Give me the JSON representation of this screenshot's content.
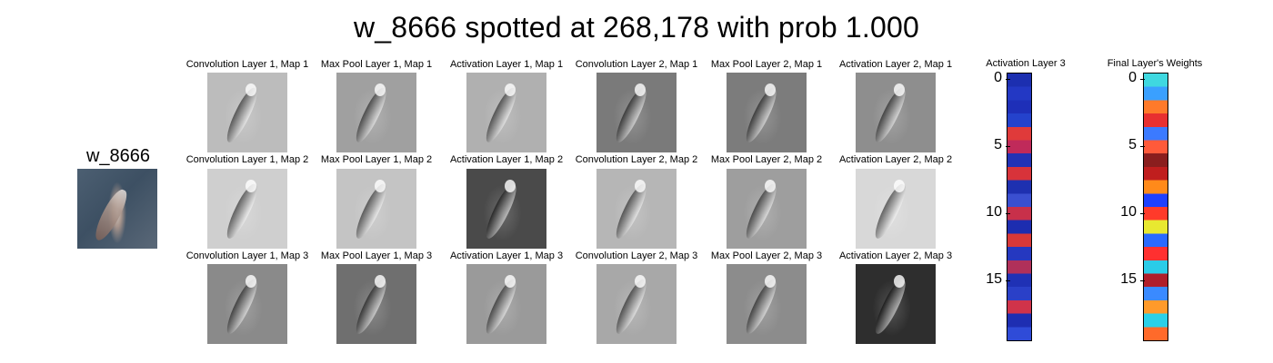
{
  "title": "w_8666 spotted at 268,178 with prob 1.000",
  "input_label": "w_8666",
  "grid": {
    "columns": [
      {
        "labels": [
          "Convolution Layer 1, Map 1",
          "Convolution Layer 1, Map 2",
          "Convolution Layer 1, Map 3"
        ],
        "tones": [
          "#bcbcbc",
          "#cfcfcf",
          "#8a8a8a"
        ]
      },
      {
        "labels": [
          "Max Pool Layer 1, Map 1",
          "Max Pool Layer 1, Map 2",
          "Max Pool Layer 1, Map 3"
        ],
        "tones": [
          "#a0a0a0",
          "#c4c4c4",
          "#6f6f6f"
        ]
      },
      {
        "labels": [
          "Activation Layer 1, Map 1",
          "Activation Layer 1, Map 2",
          "Activation Layer 1, Map 3"
        ],
        "tones": [
          "#b0b0b0",
          "#4a4a4a",
          "#9a9a9a"
        ]
      },
      {
        "labels": [
          "Convolution Layer 2, Map 1",
          "Convolution Layer 2, Map 2",
          "Convolution Layer 2, Map 3"
        ],
        "tones": [
          "#7a7a7a",
          "#b6b6b6",
          "#a8a8a8"
        ]
      },
      {
        "labels": [
          "Max Pool Layer 2, Map 1",
          "Max Pool Layer 2, Map 2",
          "Max Pool Layer 2, Map 3"
        ],
        "tones": [
          "#7c7c7c",
          "#9e9e9e",
          "#8c8c8c"
        ]
      },
      {
        "labels": [
          "Activation Layer 2, Map 1",
          "Activation Layer 2, Map 2",
          "Activation Layer 2, Map 3"
        ],
        "tones": [
          "#8e8e8e",
          "#d8d8d8",
          "#2e2e2e"
        ]
      }
    ]
  },
  "activation_bar": {
    "title": "Activation Layer 3",
    "ticks": [
      "0",
      "5",
      "10",
      "15"
    ],
    "colors": [
      "#1c2fb0",
      "#2338c4",
      "#1e2fb8",
      "#2442cc",
      "#e03a3a",
      "#c02a5a",
      "#2232b5",
      "#d8333a",
      "#1e30b0",
      "#3a4fd0",
      "#c8304a",
      "#1d2db0",
      "#d83838",
      "#2538c0",
      "#b0305a",
      "#1f31b5",
      "#2a40c8",
      "#d0334a",
      "#1e2eb2",
      "#2f4bd8"
    ]
  },
  "weights_bar": {
    "title": "Final Layer's Weights",
    "ticks": [
      "0",
      "5",
      "10",
      "15"
    ],
    "colors": [
      "#3fd8e0",
      "#3aa0ff",
      "#ff7a2a",
      "#e83030",
      "#3b7aff",
      "#ff5a3a",
      "#8a1e1e",
      "#c01e1e",
      "#ff8a1a",
      "#1e40ff",
      "#ff3a2a",
      "#e8e830",
      "#2a6aff",
      "#ff3030",
      "#2acce8",
      "#b01e2a",
      "#3a8aff",
      "#ff9a2a",
      "#2ad0e8",
      "#ff6a2a"
    ]
  }
}
